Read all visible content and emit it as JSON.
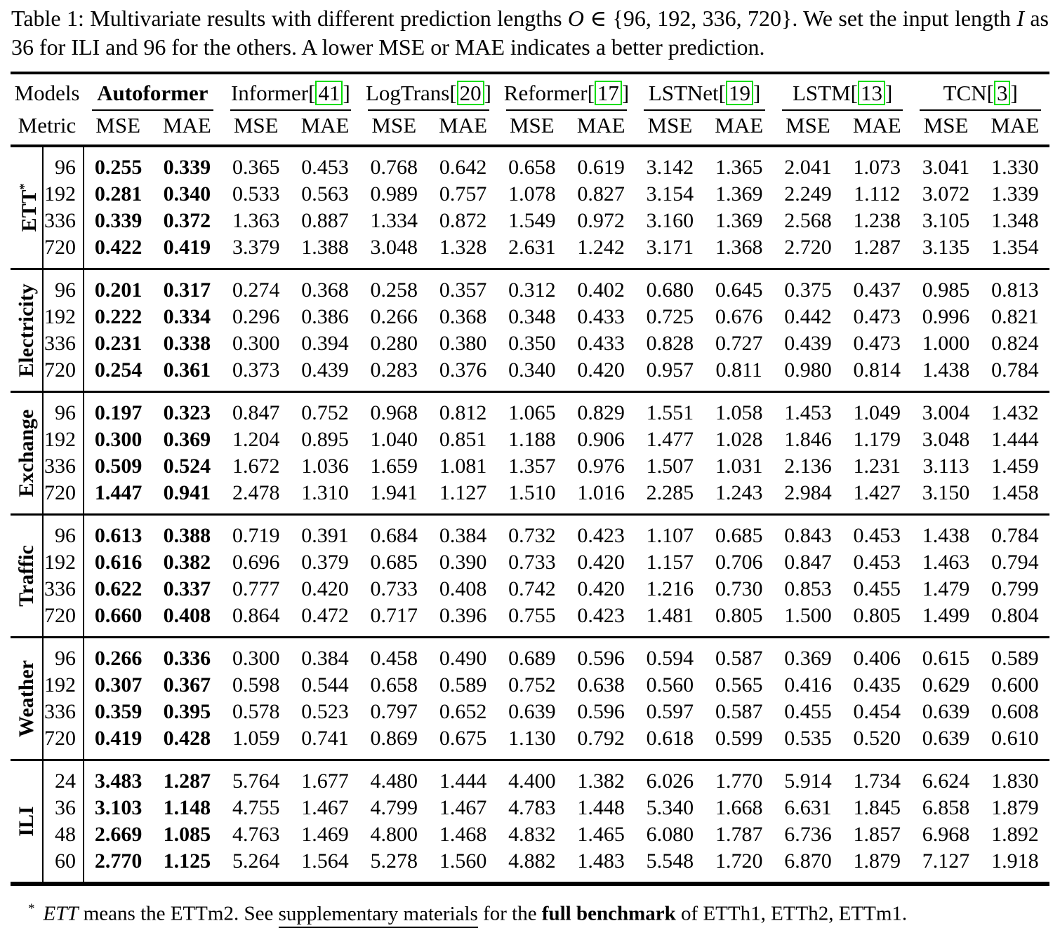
{
  "colors": {
    "citation_box": "#00dd00",
    "text": "#000000",
    "background": "#ffffff"
  },
  "caption": {
    "segments": [
      {
        "text": "Table 1: Multivariate results with different prediction lengths "
      },
      {
        "text": "O",
        "style": "math"
      },
      {
        "text": " ∈ {96, 192, 336, 720}. We set the input length "
      },
      {
        "text": "I",
        "style": "math"
      },
      {
        "text": " as 36 for ILI and 96 for the others. A lower MSE or MAE indicates a better prediction."
      }
    ]
  },
  "table": {
    "corner_labels": {
      "models": "Models",
      "metric": "Metric"
    },
    "metrics": [
      "MSE",
      "MAE"
    ],
    "models": [
      {
        "name": "Autoformer",
        "citation": null,
        "bold": true
      },
      {
        "name": "Informer",
        "citation": "41",
        "bold": false
      },
      {
        "name": "LogTrans",
        "citation": "20",
        "bold": false
      },
      {
        "name": "Reformer",
        "citation": "17",
        "bold": false
      },
      {
        "name": "LSTNet",
        "citation": "19",
        "bold": false
      },
      {
        "name": "LSTM",
        "citation": "13",
        "bold": false
      },
      {
        "name": "TCN",
        "citation": "3",
        "bold": false
      }
    ],
    "groups": [
      {
        "label": "ETT",
        "label_sup": "*",
        "rows": [
          {
            "length": "96",
            "values": [
              "0.255",
              "0.339",
              "0.365",
              "0.453",
              "0.768",
              "0.642",
              "0.658",
              "0.619",
              "3.142",
              "1.365",
              "2.041",
              "1.073",
              "3.041",
              "1.330"
            ]
          },
          {
            "length": "192",
            "values": [
              "0.281",
              "0.340",
              "0.533",
              "0.563",
              "0.989",
              "0.757",
              "1.078",
              "0.827",
              "3.154",
              "1.369",
              "2.249",
              "1.112",
              "3.072",
              "1.339"
            ]
          },
          {
            "length": "336",
            "values": [
              "0.339",
              "0.372",
              "1.363",
              "0.887",
              "1.334",
              "0.872",
              "1.549",
              "0.972",
              "3.160",
              "1.369",
              "2.568",
              "1.238",
              "3.105",
              "1.348"
            ]
          },
          {
            "length": "720",
            "values": [
              "0.422",
              "0.419",
              "3.379",
              "1.388",
              "3.048",
              "1.328",
              "2.631",
              "1.242",
              "3.171",
              "1.368",
              "2.720",
              "1.287",
              "3.135",
              "1.354"
            ]
          }
        ]
      },
      {
        "label": "Electricity",
        "label_sup": null,
        "rows": [
          {
            "length": "96",
            "values": [
              "0.201",
              "0.317",
              "0.274",
              "0.368",
              "0.258",
              "0.357",
              "0.312",
              "0.402",
              "0.680",
              "0.645",
              "0.375",
              "0.437",
              "0.985",
              "0.813"
            ]
          },
          {
            "length": "192",
            "values": [
              "0.222",
              "0.334",
              "0.296",
              "0.386",
              "0.266",
              "0.368",
              "0.348",
              "0.433",
              "0.725",
              "0.676",
              "0.442",
              "0.473",
              "0.996",
              "0.821"
            ]
          },
          {
            "length": "336",
            "values": [
              "0.231",
              "0.338",
              "0.300",
              "0.394",
              "0.280",
              "0.380",
              "0.350",
              "0.433",
              "0.828",
              "0.727",
              "0.439",
              "0.473",
              "1.000",
              "0.824"
            ]
          },
          {
            "length": "720",
            "values": [
              "0.254",
              "0.361",
              "0.373",
              "0.439",
              "0.283",
              "0.376",
              "0.340",
              "0.420",
              "0.957",
              "0.811",
              "0.980",
              "0.814",
              "1.438",
              "0.784"
            ]
          }
        ]
      },
      {
        "label": "Exchange",
        "label_sup": null,
        "rows": [
          {
            "length": "96",
            "values": [
              "0.197",
              "0.323",
              "0.847",
              "0.752",
              "0.968",
              "0.812",
              "1.065",
              "0.829",
              "1.551",
              "1.058",
              "1.453",
              "1.049",
              "3.004",
              "1.432"
            ]
          },
          {
            "length": "192",
            "values": [
              "0.300",
              "0.369",
              "1.204",
              "0.895",
              "1.040",
              "0.851",
              "1.188",
              "0.906",
              "1.477",
              "1.028",
              "1.846",
              "1.179",
              "3.048",
              "1.444"
            ]
          },
          {
            "length": "336",
            "values": [
              "0.509",
              "0.524",
              "1.672",
              "1.036",
              "1.659",
              "1.081",
              "1.357",
              "0.976",
              "1.507",
              "1.031",
              "2.136",
              "1.231",
              "3.113",
              "1.459"
            ]
          },
          {
            "length": "720",
            "values": [
              "1.447",
              "0.941",
              "2.478",
              "1.310",
              "1.941",
              "1.127",
              "1.510",
              "1.016",
              "2.285",
              "1.243",
              "2.984",
              "1.427",
              "3.150",
              "1.458"
            ]
          }
        ]
      },
      {
        "label": "Traffic",
        "label_sup": null,
        "rows": [
          {
            "length": "96",
            "values": [
              "0.613",
              "0.388",
              "0.719",
              "0.391",
              "0.684",
              "0.384",
              "0.732",
              "0.423",
              "1.107",
              "0.685",
              "0.843",
              "0.453",
              "1.438",
              "0.784"
            ]
          },
          {
            "length": "192",
            "values": [
              "0.616",
              "0.382",
              "0.696",
              "0.379",
              "0.685",
              "0.390",
              "0.733",
              "0.420",
              "1.157",
              "0.706",
              "0.847",
              "0.453",
              "1.463",
              "0.794"
            ]
          },
          {
            "length": "336",
            "values": [
              "0.622",
              "0.337",
              "0.777",
              "0.420",
              "0.733",
              "0.408",
              "0.742",
              "0.420",
              "1.216",
              "0.730",
              "0.853",
              "0.455",
              "1.479",
              "0.799"
            ]
          },
          {
            "length": "720",
            "values": [
              "0.660",
              "0.408",
              "0.864",
              "0.472",
              "0.717",
              "0.396",
              "0.755",
              "0.423",
              "1.481",
              "0.805",
              "1.500",
              "0.805",
              "1.499",
              "0.804"
            ]
          }
        ]
      },
      {
        "label": "Weather",
        "label_sup": null,
        "rows": [
          {
            "length": "96",
            "values": [
              "0.266",
              "0.336",
              "0.300",
              "0.384",
              "0.458",
              "0.490",
              "0.689",
              "0.596",
              "0.594",
              "0.587",
              "0.369",
              "0.406",
              "0.615",
              "0.589"
            ]
          },
          {
            "length": "192",
            "values": [
              "0.307",
              "0.367",
              "0.598",
              "0.544",
              "0.658",
              "0.589",
              "0.752",
              "0.638",
              "0.560",
              "0.565",
              "0.416",
              "0.435",
              "0.629",
              "0.600"
            ]
          },
          {
            "length": "336",
            "values": [
              "0.359",
              "0.395",
              "0.578",
              "0.523",
              "0.797",
              "0.652",
              "0.639",
              "0.596",
              "0.597",
              "0.587",
              "0.455",
              "0.454",
              "0.639",
              "0.608"
            ]
          },
          {
            "length": "720",
            "values": [
              "0.419",
              "0.428",
              "1.059",
              "0.741",
              "0.869",
              "0.675",
              "1.130",
              "0.792",
              "0.618",
              "0.599",
              "0.535",
              "0.520",
              "0.639",
              "0.610"
            ]
          }
        ]
      },
      {
        "label": "ILI",
        "label_sup": null,
        "rows": [
          {
            "length": "24",
            "values": [
              "3.483",
              "1.287",
              "5.764",
              "1.677",
              "4.480",
              "1.444",
              "4.400",
              "1.382",
              "6.026",
              "1.770",
              "5.914",
              "1.734",
              "6.624",
              "1.830"
            ]
          },
          {
            "length": "36",
            "values": [
              "3.103",
              "1.148",
              "4.755",
              "1.467",
              "4.799",
              "1.467",
              "4.783",
              "1.448",
              "5.340",
              "1.668",
              "6.631",
              "1.845",
              "6.858",
              "1.879"
            ]
          },
          {
            "length": "48",
            "values": [
              "2.669",
              "1.085",
              "4.763",
              "1.469",
              "4.800",
              "1.468",
              "4.832",
              "1.465",
              "6.080",
              "1.787",
              "6.736",
              "1.857",
              "6.968",
              "1.892"
            ]
          },
          {
            "length": "60",
            "values": [
              "2.770",
              "1.125",
              "5.264",
              "1.564",
              "5.278",
              "1.560",
              "4.882",
              "1.483",
              "5.548",
              "1.720",
              "6.870",
              "1.879",
              "7.127",
              "1.918"
            ]
          }
        ]
      }
    ]
  },
  "footnote": {
    "marker": "*",
    "segments": [
      {
        "text": "ETT",
        "style": "italic"
      },
      {
        "text": " means the ETTm2. See "
      },
      {
        "text": "supplementary materials",
        "style": "link"
      },
      {
        "text": " for the "
      },
      {
        "text": "full benchmark",
        "style": "bold"
      },
      {
        "text": " of ETTh1, ETTh2, ETTm1."
      }
    ]
  }
}
